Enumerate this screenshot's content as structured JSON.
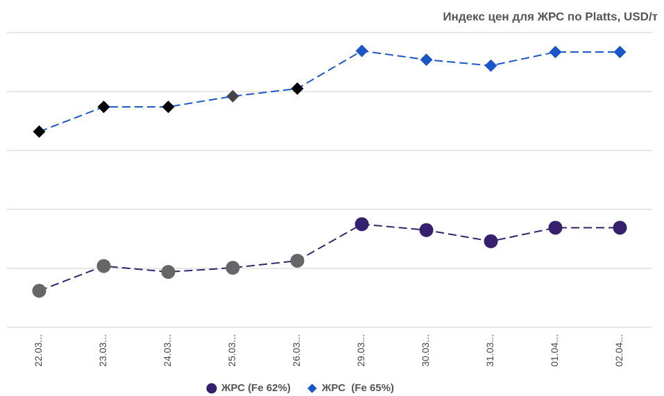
{
  "chart_data": {
    "type": "line",
    "title": "Индекс цен для ЖРС по Platts, USD/т",
    "categories": [
      "22.03...",
      "23.03...",
      "24.03...",
      "25.03...",
      "26.03...",
      "29.03...",
      "30.03...",
      "31.03...",
      "01.04...",
      "02.04..."
    ],
    "series": [
      {
        "name": "ЖРС (Fe 62%)",
        "color": "#35206e",
        "marker": "circle",
        "point_colors": [
          "#666666",
          "#666666",
          "#666666",
          "#666666",
          "#666666",
          "#35206e",
          "#35206e",
          "#35206e",
          "#35206e",
          "#35206e"
        ],
        "values": [
          0.62,
          1.04,
          0.94,
          1.01,
          1.13,
          1.75,
          1.65,
          1.46,
          1.69,
          1.69
        ]
      },
      {
        "name": "ЖРС  (Fe 65%)",
        "color": "#1a56c9",
        "marker": "diamond",
        "point_colors": [
          "#000000",
          "#000000",
          "#000000",
          "#444444",
          "#000000",
          "#1a56c9",
          "#1a56c9",
          "#1a56c9",
          "#1a56c9",
          "#1a56c9"
        ],
        "values": [
          3.32,
          3.74,
          3.74,
          3.92,
          4.05,
          4.69,
          4.54,
          4.44,
          4.67,
          4.67
        ]
      }
    ],
    "ylim": [
      0,
      5
    ],
    "yticks": [
      0,
      1,
      2,
      3,
      4,
      5
    ],
    "grid": true,
    "legend": "bottom"
  }
}
